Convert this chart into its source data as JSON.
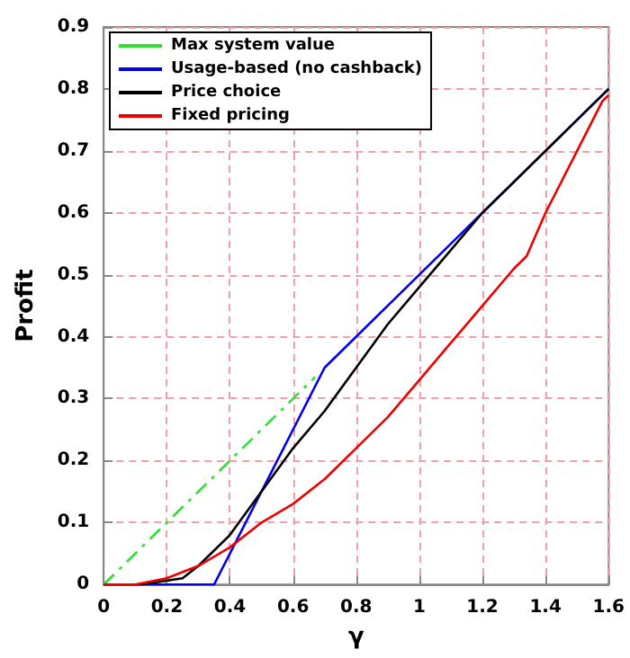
{
  "chart_data": {
    "type": "line",
    "xlabel": "γ",
    "ylabel": "Profit",
    "xlim": [
      0,
      1.6
    ],
    "ylim": [
      0,
      0.9
    ],
    "xticks": [
      0,
      0.2,
      0.4,
      0.6,
      0.8,
      1,
      1.2,
      1.4,
      1.6
    ],
    "yticks": [
      0,
      0.1,
      0.2,
      0.3,
      0.4,
      0.5,
      0.6,
      0.7,
      0.8,
      0.9
    ],
    "grid": true,
    "legend": "top left",
    "marker": "none",
    "series": [
      {
        "name": "Max system value",
        "color": "#33dd33",
        "line_style": "dashdot",
        "x": [
          0,
          0.67
        ],
        "values": [
          0,
          0.335
        ]
      },
      {
        "name": "Usage-based (no cashback)",
        "color": "#0000ee",
        "x": [
          0,
          0.35,
          0.7,
          1.6
        ],
        "values": [
          0,
          0,
          0.35,
          0.8
        ]
      },
      {
        "name": "Price choice",
        "color": "#000000",
        "x": [
          0,
          0.12,
          0.25,
          0.3,
          0.4,
          0.5,
          0.6,
          0.7,
          0.8,
          0.9,
          1.0,
          1.2,
          1.4,
          1.6
        ],
        "values": [
          0,
          0,
          0.01,
          0.03,
          0.08,
          0.15,
          0.22,
          0.28,
          0.35,
          0.42,
          0.48,
          0.6,
          0.7,
          0.8
        ]
      },
      {
        "name": "Fixed pricing",
        "color": "#ee0000",
        "x": [
          0,
          0.1,
          0.2,
          0.3,
          0.4,
          0.5,
          0.6,
          0.7,
          0.8,
          0.9,
          1.0,
          1.1,
          1.2,
          1.3,
          1.34,
          1.4,
          1.5,
          1.58,
          1.6
        ],
        "values": [
          0,
          0,
          0.01,
          0.03,
          0.06,
          0.1,
          0.13,
          0.17,
          0.22,
          0.27,
          0.33,
          0.39,
          0.45,
          0.51,
          0.53,
          0.6,
          0.7,
          0.78,
          0.79
        ]
      }
    ]
  }
}
